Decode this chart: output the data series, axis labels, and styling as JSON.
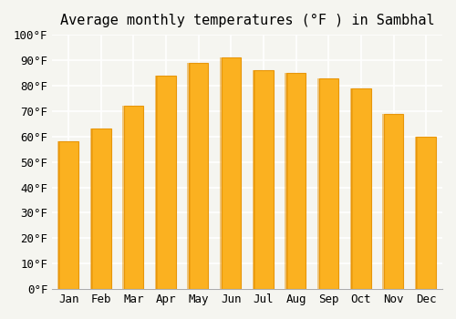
{
  "title": "Average monthly temperatures (°F ) in Sambhal",
  "months": [
    "Jan",
    "Feb",
    "Mar",
    "Apr",
    "May",
    "Jun",
    "Jul",
    "Aug",
    "Sep",
    "Oct",
    "Nov",
    "Dec"
  ],
  "values": [
    58,
    63,
    72,
    84,
    89,
    91,
    86,
    85,
    83,
    79,
    69,
    60
  ],
  "bar_color_main": "#FBB120",
  "bar_color_edge": "#E8960A",
  "background_color": "#F5F5F0",
  "ylim": [
    0,
    100
  ],
  "yticks": [
    0,
    10,
    20,
    30,
    40,
    50,
    60,
    70,
    80,
    90,
    100
  ],
  "grid_color": "#FFFFFF",
  "title_fontsize": 11,
  "tick_fontsize": 9,
  "font_family": "monospace"
}
